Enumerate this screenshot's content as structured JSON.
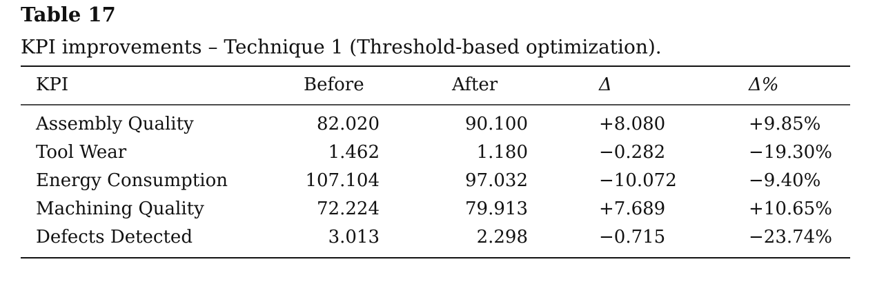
{
  "table": {
    "title": "Table 17",
    "caption": "KPI improvements – Technique 1 (Threshold-based optimization).",
    "header": [
      "KPI",
      "Before",
      "After",
      "Δ",
      "Δ%"
    ],
    "rows": [
      [
        "Assembly Quality",
        "82.020",
        "90.100",
        "+8.080",
        "+9.85%"
      ],
      [
        "Tool Wear",
        "1.462",
        "1.180",
        "−0.282",
        "−19.30%"
      ],
      [
        "Energy Consumption",
        "107.104",
        "97.032",
        "−10.072",
        "−9.40%"
      ],
      [
        "Machining Quality",
        "72.224",
        "79.913",
        "+7.689",
        "+10.65%"
      ],
      [
        "Defects Detected",
        "3.013",
        "2.298",
        "−0.715",
        "−23.74%"
      ]
    ]
  }
}
